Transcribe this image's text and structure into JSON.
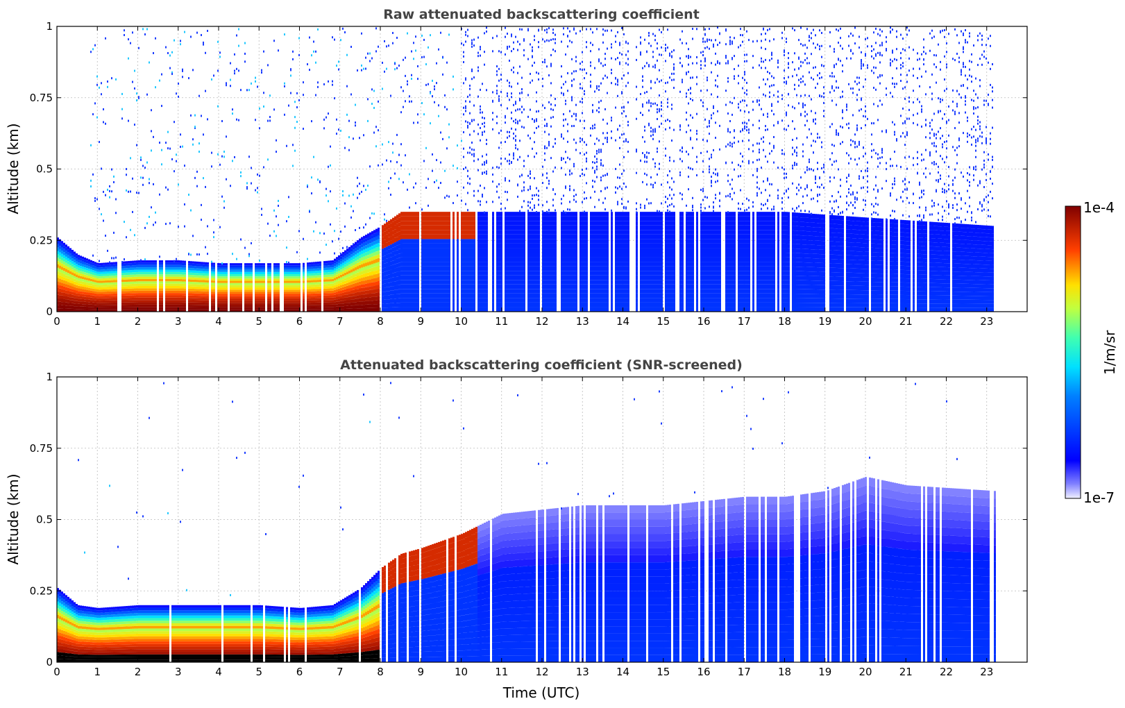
{
  "colors": {
    "accent": "#1565ff",
    "title": "#444444",
    "grid": "#bbbbbb",
    "black": "#000000"
  },
  "chart_data": [
    {
      "type": "heatmap",
      "title": "Raw attenuated backscattering coefficient",
      "xlabel": "",
      "ylabel": "Altitude (km)",
      "xlim": [
        0,
        24
      ],
      "ylim": [
        0,
        1
      ],
      "x_ticks": [
        0,
        1,
        2,
        3,
        4,
        5,
        6,
        7,
        8,
        9,
        10,
        11,
        12,
        13,
        14,
        15,
        16,
        17,
        18,
        19,
        20,
        21,
        22,
        23
      ],
      "y_ticks": [
        0,
        0.25,
        0.5,
        0.75,
        1
      ],
      "y_tick_labels": [
        "0",
        "0.25",
        "0.5",
        "0.75",
        "1"
      ],
      "grid": true,
      "data_end_hour": 23.2,
      "variant": "raw",
      "layer_top_km": [
        [
          0,
          0.26
        ],
        [
          0.5,
          0.2
        ],
        [
          1,
          0.17
        ],
        [
          2,
          0.18
        ],
        [
          3,
          0.18
        ],
        [
          4,
          0.17
        ],
        [
          5,
          0.17
        ],
        [
          6,
          0.17
        ],
        [
          6.8,
          0.18
        ],
        [
          7.5,
          0.26
        ],
        [
          8,
          0.3
        ],
        [
          8.5,
          0.35
        ],
        [
          9,
          0.35
        ],
        [
          10,
          0.35
        ],
        [
          11,
          0.35
        ],
        [
          14,
          0.35
        ],
        [
          18,
          0.35
        ],
        [
          20,
          0.33
        ],
        [
          23.2,
          0.3
        ]
      ]
    },
    {
      "type": "heatmap",
      "title": "Attenuated backscattering coefficient (SNR-screened)",
      "xlabel": "Time (UTC)",
      "ylabel": "Altitude (km)",
      "xlim": [
        0,
        24
      ],
      "ylim": [
        0,
        1
      ],
      "x_ticks": [
        0,
        1,
        2,
        3,
        4,
        5,
        6,
        7,
        8,
        9,
        10,
        11,
        12,
        13,
        14,
        15,
        16,
        17,
        18,
        19,
        20,
        21,
        22,
        23
      ],
      "y_ticks": [
        0,
        0.25,
        0.5,
        0.75,
        1
      ],
      "y_tick_labels": [
        "0",
        "0.25",
        "0.5",
        "0.75",
        "1"
      ],
      "grid": true,
      "data_end_hour": 23.2,
      "variant": "screened",
      "layer_top_km": [
        [
          0,
          0.26
        ],
        [
          0.5,
          0.2
        ],
        [
          1,
          0.19
        ],
        [
          2,
          0.2
        ],
        [
          3,
          0.2
        ],
        [
          4,
          0.2
        ],
        [
          5,
          0.2
        ],
        [
          6,
          0.19
        ],
        [
          6.8,
          0.2
        ],
        [
          7.5,
          0.26
        ],
        [
          8,
          0.33
        ],
        [
          8.5,
          0.38
        ],
        [
          9,
          0.4
        ],
        [
          10,
          0.45
        ],
        [
          11,
          0.52
        ],
        [
          13,
          0.55
        ],
        [
          15,
          0.55
        ],
        [
          17,
          0.58
        ],
        [
          18,
          0.58
        ],
        [
          19,
          0.6
        ],
        [
          20,
          0.65
        ],
        [
          21,
          0.62
        ],
        [
          23.2,
          0.6
        ]
      ]
    }
  ],
  "colorbar": {
    "label": "1/m/sr",
    "max_label": "1e-4",
    "min_label": "1e-7",
    "scale": "log",
    "colormap": "jet"
  }
}
